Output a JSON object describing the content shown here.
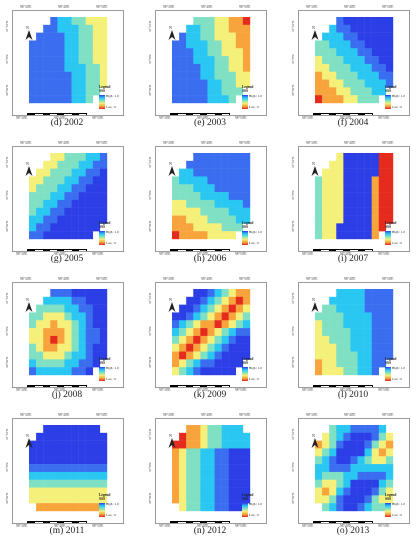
{
  "figure": {
    "panels": [
      {
        "caption": "(d) 2002"
      },
      {
        "caption": "(e) 2003"
      },
      {
        "caption": "(f) 2004"
      },
      {
        "caption": "(g) 2005"
      },
      {
        "caption": "(h) 2006"
      },
      {
        "caption": "(i) 2007"
      },
      {
        "caption": "(j) 2008"
      },
      {
        "caption": "(k) 2009"
      },
      {
        "caption": "(l) 2010"
      },
      {
        "caption": "(m) 2011"
      },
      {
        "caption": "(n) 2012"
      },
      {
        "caption": "(o) 2013"
      }
    ],
    "legend": {
      "title": "Legend",
      "subtitle": "SSS",
      "high": "High : 1.0",
      "low": "Low : 0"
    },
    "north_label": "N",
    "tick_labels": {
      "top": [
        "98°30'E",
        "98°40'E",
        "98°50'E"
      ],
      "left": [
        "31°10'N",
        "31°0'N",
        "30°50'N"
      ]
    },
    "colors": {
      "high": "#e52a1e",
      "orange": "#f7a43c",
      "yellow": "#f5f07a",
      "teal": "#7fe0c4",
      "cyan": "#29c7f2",
      "low": "#2c3fe6"
    }
  }
}
